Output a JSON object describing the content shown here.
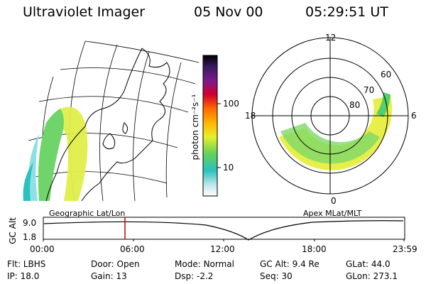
{
  "header": {
    "instrument": "Ultraviolet Imager",
    "date": "05 Nov 00",
    "time": "05:29:51 UT"
  },
  "colorbar": {
    "unit_label": "photon cm⁻²s⁻¹",
    "ticks": [
      "100",
      "10"
    ]
  },
  "polar": {
    "mlt_labels": [
      "12",
      "18",
      "6",
      "0"
    ],
    "mlat_labels": [
      "60",
      "70",
      "80"
    ]
  },
  "panel_titles": {
    "left": "Geographic Lat/Lon",
    "right": "Apex MLat/MLT"
  },
  "timeline": {
    "ylabel": "GC Alt",
    "yticks": [
      "9.0",
      "1.8"
    ],
    "xticks": [
      "00:00",
      "06:00",
      "12:00",
      "18:00",
      "23:59"
    ]
  },
  "info": {
    "row1": [
      {
        "label": "Flt:",
        "value": "LBHS"
      },
      {
        "label": "Door:",
        "value": "Open"
      },
      {
        "label": "Mode:",
        "value": "Normal"
      },
      {
        "label": "GC Alt:",
        "value": "9.4 Re"
      },
      {
        "label": "GLat:",
        "value": "44.0"
      }
    ],
    "row2": [
      {
        "label": "IP:",
        "value": "18.0"
      },
      {
        "label": "Gain:",
        "value": "13"
      },
      {
        "label": "Dsp:",
        "value": "-2.2"
      },
      {
        "label": "Seq:",
        "value": "30"
      },
      {
        "label": "GLon:",
        "value": "273.1"
      }
    ]
  }
}
